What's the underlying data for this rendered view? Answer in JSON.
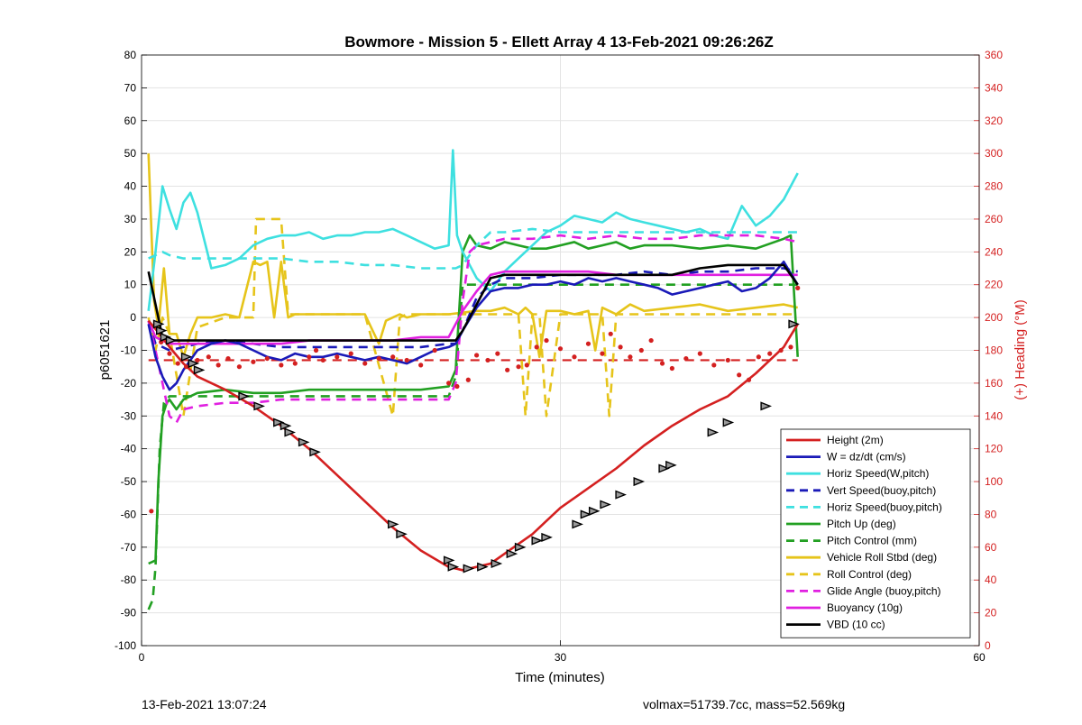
{
  "title": "Bowmore - Mission 5 - Ellett Array 4 13-Feb-2021 09:26:26Z",
  "footer": {
    "left": "13-Feb-2021 13:07:24",
    "right": "volmax=51739.7cc, mass=52.569kg"
  },
  "chart_data": {
    "type": "line",
    "title": "Bowmore - Mission 5 - Ellett Array 4 13-Feb-2021 09:26:26Z",
    "xlabel": "Time (minutes)",
    "ylabel": "p6051621",
    "y2label": "(+) Heading (°M)",
    "xlim": [
      0,
      60
    ],
    "ylim": [
      -100,
      80
    ],
    "y2lim": [
      0,
      360
    ],
    "xticks": [
      0,
      30,
      60
    ],
    "yticks": [
      -100,
      -90,
      -80,
      -70,
      -60,
      -50,
      -40,
      -30,
      -20,
      -10,
      0,
      10,
      20,
      30,
      40,
      50,
      60,
      70,
      80
    ],
    "y2ticks": [
      0,
      20,
      40,
      60,
      80,
      100,
      120,
      140,
      160,
      180,
      200,
      220,
      240,
      260,
      280,
      300,
      320,
      340,
      360
    ],
    "grid": true,
    "legend_position": "bottom-right",
    "colors": {
      "height": "#d42020",
      "w": "#1a1ab8",
      "horiz": "#3ee0e0",
      "pitch": "#22a022",
      "roll": "#e6c41a",
      "glide": "#e020e0",
      "vbd": "#000000",
      "right_axis": "#d42020"
    },
    "series": [
      {
        "name": "Height (2m)",
        "color": "#d42020",
        "dash": false,
        "x": [
          0.5,
          1.3,
          2,
          3,
          4,
          6,
          8,
          10,
          12,
          14,
          16,
          18,
          20,
          22,
          23,
          24,
          25,
          26,
          27,
          28,
          29,
          30,
          32,
          34,
          36,
          38,
          40,
          42,
          44,
          46,
          47
        ],
        "y": [
          -1,
          -5,
          -9,
          -14,
          -18,
          -22,
          -27,
          -33,
          -40,
          -48,
          -56,
          -64,
          -71,
          -76,
          -77,
          -76,
          -75,
          -72,
          -69,
          -66,
          -62,
          -58,
          -52,
          -46,
          -39,
          -33,
          -28,
          -24,
          -17,
          -9,
          -2
        ]
      },
      {
        "name": "W = dz/dt (cm/s)",
        "color": "#1a1ab8",
        "dash": false,
        "x": [
          0.5,
          1,
          1.5,
          2,
          2.5,
          3,
          4,
          5,
          6,
          7,
          8,
          9,
          10,
          11,
          12,
          13,
          14,
          15,
          16,
          17,
          18,
          19,
          20,
          21,
          22,
          22.5,
          23,
          24,
          25,
          26,
          27,
          28,
          29,
          30,
          31,
          32,
          33,
          34,
          35,
          36,
          37,
          38,
          39,
          40,
          41,
          42,
          43,
          44,
          45,
          46,
          47
        ],
        "y": [
          -2,
          -12,
          -18,
          -22,
          -20,
          -16,
          -10,
          -8,
          -7,
          -8,
          -10,
          -12,
          -13,
          -11,
          -12,
          -12,
          -11,
          -12,
          -13,
          -12,
          -13,
          -14,
          -12,
          -10,
          -9,
          -8,
          -4,
          3,
          8,
          9,
          9,
          10,
          10,
          11,
          10,
          12,
          11,
          12,
          11,
          10,
          9,
          7,
          8,
          9,
          10,
          11,
          8,
          9,
          12,
          17,
          10
        ]
      },
      {
        "name": "Horiz Speed(W,pitch)",
        "color": "#3ee0e0",
        "dash": false,
        "x": [
          0.5,
          1,
          1.5,
          2,
          2.5,
          3,
          3.5,
          4,
          5,
          6,
          7,
          8,
          9,
          10,
          11,
          12,
          13,
          14,
          15,
          16,
          17,
          18,
          19,
          20,
          21,
          22,
          22.3,
          22.6,
          23,
          24,
          25,
          26,
          27,
          28,
          29,
          30,
          31,
          32,
          33,
          34,
          35,
          36,
          37,
          38,
          39,
          40,
          41,
          42,
          43,
          44,
          45,
          46,
          47
        ],
        "y": [
          2,
          20,
          40,
          33,
          27,
          35,
          38,
          32,
          15,
          16,
          18,
          22,
          24,
          25,
          25,
          26,
          24,
          25,
          25,
          26,
          26,
          27,
          25,
          23,
          21,
          22,
          51,
          25,
          20,
          12,
          8,
          14,
          18,
          22,
          26,
          28,
          31,
          30,
          29,
          32,
          30,
          29,
          28,
          27,
          26,
          27,
          25,
          24,
          34,
          28,
          31,
          36,
          44
        ]
      },
      {
        "name": "Vert Speed(buoy,pitch)",
        "color": "#1a1ab8",
        "dash": true,
        "x": [
          0.5,
          1,
          2,
          3,
          4,
          6,
          8,
          10,
          12,
          14,
          16,
          18,
          20,
          22,
          22.5,
          23,
          24,
          25,
          26,
          28,
          30,
          32,
          34,
          36,
          38,
          40,
          42,
          44,
          46,
          47
        ],
        "y": [
          -1,
          -8,
          -10,
          -9,
          -8,
          -7,
          -8,
          -9,
          -9,
          -9,
          -9,
          -9,
          -9,
          -8,
          -8,
          -4,
          6,
          10,
          12,
          12,
          13,
          13,
          13,
          14,
          13,
          14,
          14,
          15,
          15,
          14
        ]
      },
      {
        "name": "Horiz Speed(buoy,pitch)",
        "color": "#3ee0e0",
        "dash": true,
        "x": [
          0.5,
          1,
          1.5,
          2,
          3,
          4,
          6,
          8,
          10,
          12,
          14,
          16,
          18,
          20,
          22,
          22.5,
          23,
          24,
          25,
          26,
          28,
          30,
          32,
          34,
          36,
          38,
          40,
          42,
          44,
          46,
          47
        ],
        "y": [
          18,
          19,
          20,
          19,
          18,
          18,
          18,
          18,
          18,
          17,
          17,
          16,
          16,
          15,
          15,
          15,
          16,
          22,
          26,
          26,
          27,
          26,
          26,
          26,
          26,
          26,
          26,
          26,
          26,
          26,
          26
        ]
      },
      {
        "name": "Pitch Up (deg)",
        "color": "#22a022",
        "dash": false,
        "x": [
          0.5,
          1,
          1.2,
          1.5,
          1.8,
          2,
          2.5,
          3,
          4,
          6,
          8,
          10,
          12,
          14,
          16,
          18,
          20,
          22,
          22.5,
          23,
          23.5,
          24,
          25,
          26,
          27,
          28,
          29,
          30,
          31,
          32,
          33,
          34,
          35,
          36,
          38,
          40,
          42,
          44,
          46,
          46.5,
          47
        ],
        "y": [
          -75,
          -74,
          -50,
          -30,
          -26,
          -25,
          -28,
          -25,
          -23,
          -22,
          -23,
          -23,
          -22,
          -22,
          -22,
          -22,
          -22,
          -21,
          -16,
          20,
          25,
          22,
          21,
          23,
          22,
          21,
          21,
          22,
          23,
          21,
          22,
          23,
          21,
          22,
          22,
          21,
          22,
          21,
          24,
          25,
          -12
        ]
      },
      {
        "name": "Pitch Control (mm)",
        "color": "#22a022",
        "dash": true,
        "x": [
          0.5,
          0.8,
          1,
          1.3,
          1.6,
          2,
          3,
          4,
          6,
          8,
          10,
          12,
          14,
          16,
          18,
          20,
          22,
          22.5,
          23,
          24,
          26,
          30,
          34,
          38,
          42,
          47
        ],
        "y": [
          -89,
          -86,
          -76,
          -40,
          -26,
          -24,
          -24,
          -24,
          -24,
          -24,
          -24,
          -24,
          -24,
          -24,
          -24,
          -24,
          -24,
          -18,
          10,
          10,
          10,
          10,
          10,
          10,
          10,
          10
        ]
      },
      {
        "name": "Vehicle Roll Stbd (deg)",
        "color": "#e6c41a",
        "dash": false,
        "x": [
          0.5,
          0.9,
          1.2,
          1.6,
          2,
          2.5,
          3,
          3.5,
          4,
          5,
          6,
          7,
          8,
          8.5,
          9,
          9.5,
          10,
          10.5,
          11,
          12,
          14,
          16,
          17,
          17.5,
          18,
          18.5,
          19,
          20,
          22,
          24,
          25,
          26,
          27,
          27.5,
          28,
          28.5,
          29,
          30,
          31,
          32,
          32.5,
          33,
          33.5,
          34,
          35,
          36,
          38,
          40,
          42,
          44,
          46,
          47
        ],
        "y": [
          50,
          5,
          -3,
          15,
          -5,
          -5,
          -12,
          -5,
          0,
          0,
          1,
          0,
          17,
          16,
          17,
          0,
          17,
          0,
          1,
          1,
          1,
          1,
          -8,
          -1,
          0,
          1,
          0,
          1,
          1,
          2,
          2,
          3,
          1,
          3,
          1,
          -12,
          2,
          2,
          1,
          2,
          -10,
          3,
          2,
          1,
          4,
          2,
          3,
          4,
          2,
          3,
          4,
          3
        ]
      },
      {
        "name": "Roll Control (deg)",
        "color": "#e6c41a",
        "dash": true,
        "x": [
          0.5,
          1,
          1.5,
          2,
          3,
          4,
          6,
          8,
          8.2,
          9,
          10,
          10.5,
          12,
          14,
          16,
          18,
          18.5,
          19,
          20,
          22,
          24,
          26,
          27,
          27.5,
          28,
          28.5,
          29,
          30,
          32,
          33,
          33.5,
          34,
          35,
          36,
          38,
          40,
          42,
          44,
          46,
          47
        ],
        "y": [
          0,
          -10,
          0,
          -5,
          -30,
          -3,
          0,
          0,
          30,
          30,
          30,
          1,
          1,
          1,
          1,
          -30,
          0,
          1,
          1,
          1,
          1,
          1,
          1,
          -30,
          1,
          1,
          -30,
          1,
          1,
          1,
          -30,
          1,
          1,
          1,
          1,
          1,
          1,
          1,
          1,
          1
        ]
      },
      {
        "name": "Glide Angle (buoy,pitch)",
        "color": "#e020e0",
        "dash": true,
        "x": [
          0.5,
          1,
          1.5,
          2,
          2.5,
          3,
          4,
          6,
          8,
          10,
          12,
          14,
          16,
          18,
          20,
          22,
          22.5,
          23,
          23.5,
          24,
          26,
          28,
          30,
          32,
          34,
          36,
          38,
          40,
          42,
          44,
          46,
          47
        ],
        "y": [
          -1,
          -10,
          -20,
          -30,
          -32,
          -28,
          -27,
          -26,
          -26,
          -25,
          -25,
          -25,
          -25,
          -25,
          -25,
          -25,
          -20,
          5,
          20,
          22,
          24,
          24,
          25,
          24,
          25,
          24,
          24,
          25,
          25,
          25,
          24,
          23
        ]
      },
      {
        "name": "Buoyancy (10g)",
        "color": "#e020e0",
        "dash": false,
        "x": [
          0.5,
          1,
          1.5,
          2,
          3,
          4,
          6,
          8,
          10,
          12,
          14,
          16,
          18,
          20,
          22,
          23,
          24,
          25,
          26,
          28,
          30,
          32,
          34,
          36,
          38,
          40,
          42,
          44,
          46,
          47
        ],
        "y": [
          -1,
          -6,
          -7,
          -8,
          -8,
          -8,
          -8,
          -8,
          -8,
          -7,
          -7,
          -7,
          -7,
          -6,
          -6,
          2,
          8,
          13,
          14,
          14,
          14,
          14,
          13,
          13,
          13,
          13,
          13,
          13,
          13,
          13
        ]
      },
      {
        "name": "VBD (10 cc)",
        "color": "#000000",
        "dash": false,
        "x": [
          0.5,
          1,
          1.5,
          2,
          3,
          6,
          10,
          14,
          18,
          22,
          22.5,
          23,
          24,
          25,
          26,
          30,
          34,
          38,
          39,
          40,
          42,
          44,
          46,
          47
        ],
        "y": [
          14,
          4,
          -6,
          -7,
          -7,
          -7,
          -7,
          -7,
          -7,
          -7,
          -7,
          -4,
          4,
          12,
          13,
          13,
          13,
          13,
          14,
          15,
          16,
          16,
          16,
          10
        ]
      }
    ],
    "heading_reference": {
      "color": "#d42020",
      "dash": true,
      "y2": 174
    },
    "heading_points": {
      "color": "#d42020",
      "x": [
        0.7,
        1,
        1.4,
        2,
        2.6,
        3.2,
        4,
        4.8,
        5.5,
        6.2,
        7,
        8,
        9,
        10,
        11,
        12,
        12.5,
        13,
        14,
        15,
        16,
        17,
        18,
        19,
        20,
        21,
        22,
        22.6,
        23.4,
        24,
        24.8,
        25.5,
        26.2,
        27,
        27.6,
        28.3,
        29,
        30,
        31,
        32,
        33,
        33.6,
        34.3,
        35,
        35.8,
        36.5,
        37.3,
        38,
        39,
        40,
        41,
        42,
        42.8,
        43.5,
        44.2,
        45,
        45.8,
        46.5,
        47
      ],
      "y2": [
        82,
        196,
        185,
        178,
        172,
        170,
        174,
        176,
        171,
        175,
        170,
        173,
        175,
        171,
        172,
        176,
        180,
        174,
        176,
        178,
        172,
        175,
        176,
        174,
        171,
        180,
        160,
        158,
        162,
        177,
        174,
        178,
        168,
        170,
        171,
        182,
        186,
        181,
        176,
        184,
        178,
        190,
        182,
        176,
        180,
        186,
        172,
        169,
        175,
        178,
        171,
        174,
        165,
        162,
        176,
        178,
        180,
        182,
        218
      ]
    },
    "glider_markers": {
      "x": [
        1.2,
        1.4,
        1.7,
        2.1,
        3.2,
        3.7,
        4.1,
        7.3,
        8.4,
        9.8,
        10.3,
        10.6,
        11.6,
        12.4,
        18,
        18.6,
        22,
        22.3,
        23.4,
        24.4,
        25.4,
        26.5,
        27.1,
        28.3,
        29,
        31.2,
        31.8,
        32.4,
        33.2,
        34.3,
        35.6,
        37.4,
        37.9,
        40.9,
        42,
        44.7,
        46.7
      ],
      "y": [
        -2,
        -4,
        -6,
        -7,
        -12,
        -14,
        -16,
        -24,
        -27,
        -32,
        -33,
        -35,
        -38,
        -41,
        -63,
        -66,
        -74,
        -76,
        -76.5,
        -76,
        -75,
        -72,
        -70,
        -68,
        -67,
        -63,
        -60,
        -59,
        -57,
        -54,
        -50,
        -46,
        -45,
        -35,
        -32,
        -27,
        -2
      ]
    }
  }
}
